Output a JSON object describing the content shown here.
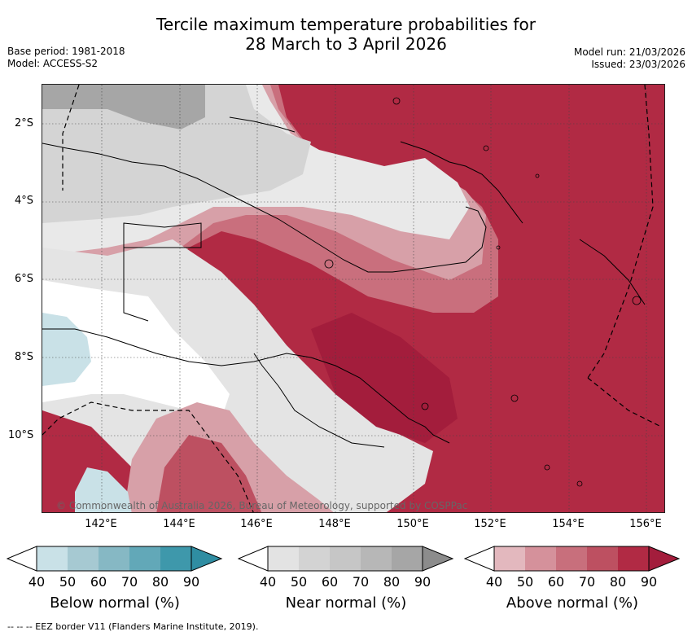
{
  "title_line1": "Tercile maximum temperature probabilities for",
  "title_line2": "28 March to 3 April 2026",
  "meta_left": {
    "base_period": "Base period: 1981-2018",
    "model": "Model: ACCESS-S2"
  },
  "meta_right": {
    "model_run": "Model run: 21/03/2026",
    "issued": "Issued: 23/03/2026"
  },
  "lat_labels": [
    "2°S",
    "4°S",
    "6°S",
    "8°S",
    "10°S"
  ],
  "lon_labels": [
    "142°E",
    "144°E",
    "146°E",
    "148°E",
    "150°E",
    "152°E",
    "154°E",
    "156°E"
  ],
  "copyright": "© Commonwealth of Australia 2026, Bureau of Meteorology, supported by COSPPac",
  "colorbars": [
    {
      "label": "Below normal (%)",
      "ticks": [
        "40",
        "50",
        "60",
        "70",
        "80",
        "90"
      ],
      "colors": [
        "#c9e1e7",
        "#a6c9d2",
        "#86b8c4",
        "#62a8b8",
        "#3e98ab",
        "#2f8da2"
      ]
    },
    {
      "label": "Near normal (%)",
      "ticks": [
        "40",
        "50",
        "60",
        "70",
        "80",
        "90"
      ],
      "colors": [
        "#e3e3e3",
        "#d3d3d3",
        "#c6c6c6",
        "#b7b7b7",
        "#a6a6a6",
        "#8c8c8c"
      ]
    },
    {
      "label": "Above normal (%)",
      "ticks": [
        "40",
        "50",
        "60",
        "70",
        "80",
        "90"
      ],
      "colors": [
        "#e3b8be",
        "#d5919b",
        "#c86f7c",
        "#bd5061",
        "#b12a44",
        "#a31d3c"
      ]
    }
  ],
  "footnote": "-- -- -- EEZ border V11 (Flanders Marine Institute, 2019)."
}
